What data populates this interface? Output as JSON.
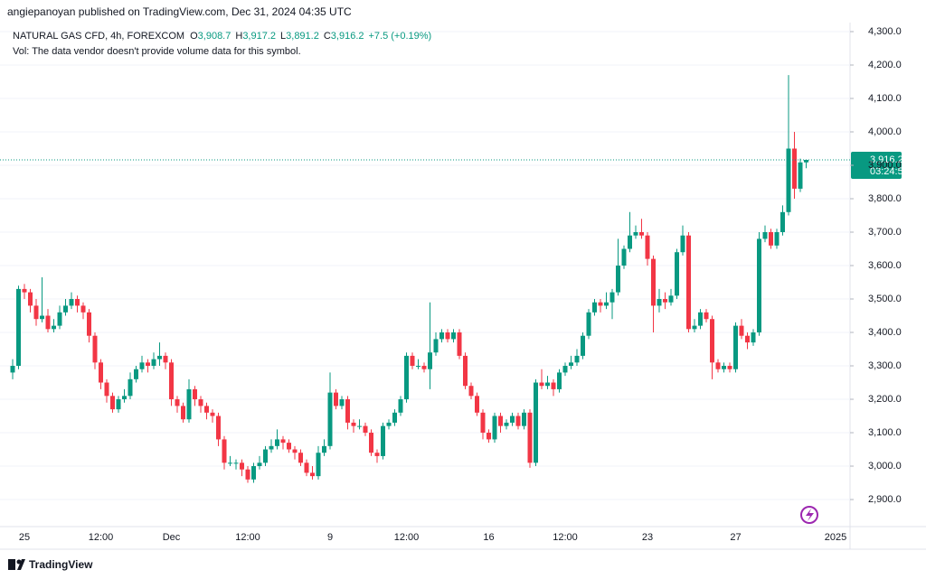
{
  "header": {
    "publisher": "angiepanoyan published on TradingView.com, Dec 31, 2024 04:35 UTC"
  },
  "chart_data": {
    "type": "candlestick",
    "title": "NATURAL GAS CFD, 4h, FOREXCOM",
    "legend": [
      {
        "key": "O",
        "value": 3908.7,
        "label": "3,908.7"
      },
      {
        "key": "H",
        "value": 3917.2,
        "label": "3,917.2"
      },
      {
        "key": "L",
        "value": 3891.2,
        "label": "3,891.2"
      },
      {
        "key": "C",
        "value": 3916.2,
        "label": "3,916.2"
      }
    ],
    "change": {
      "value": 7.5,
      "label": "+7.5 (+0.19%)"
    },
    "note": "Vol: The data vendor doesn't provide volume data for this symbol.",
    "up_color": "#089981",
    "down_color": "#f23645",
    "grid": true,
    "categories": [
      null,
      null,
      "25",
      null,
      null,
      null,
      null,
      null,
      null,
      null,
      null,
      null,
      null,
      null,
      null,
      "12:00",
      null,
      null,
      null,
      null,
      null,
      null,
      null,
      null,
      null,
      null,
      null,
      "Dec",
      null,
      null,
      null,
      null,
      null,
      null,
      null,
      null,
      null,
      null,
      null,
      null,
      "12:00",
      null,
      null,
      null,
      null,
      null,
      null,
      null,
      null,
      null,
      null,
      null,
      null,
      null,
      "9",
      null,
      null,
      null,
      null,
      null,
      null,
      null,
      null,
      null,
      null,
      null,
      null,
      "12:00",
      null,
      null,
      null,
      null,
      null,
      null,
      null,
      null,
      null,
      null,
      null,
      null,
      null,
      "16",
      null,
      null,
      null,
      null,
      null,
      null,
      null,
      null,
      null,
      null,
      null,
      null,
      "12:00",
      null,
      null,
      null,
      null,
      null,
      null,
      null,
      null,
      null,
      null,
      null,
      null,
      null,
      "23",
      null,
      null,
      null,
      null,
      null,
      null,
      null,
      null,
      null,
      null,
      null,
      null,
      null,
      null,
      "27",
      null,
      null,
      null,
      null,
      null,
      null,
      null,
      null,
      null,
      null,
      null,
      null,
      null,
      null,
      null,
      null,
      "2025"
    ],
    "open": [
      3280,
      3300,
      3530,
      3520,
      3480,
      3440,
      3450,
      3410,
      3420,
      3460,
      3480,
      3500,
      3480,
      3460,
      3390,
      3310,
      3250,
      3210,
      3170,
      3200,
      3210,
      3260,
      3290,
      3310,
      3300,
      3320,
      3330,
      3310,
      3200,
      3180,
      3140,
      3230,
      3200,
      3180,
      3160,
      3150,
      3080,
      3010,
      3010,
      3010,
      2990,
      2960,
      3000,
      3010,
      3050,
      3060,
      3080,
      3070,
      3050,
      3040,
      3010,
      2980,
      2970,
      3040,
      3060,
      3220,
      3180,
      3200,
      3130,
      3120,
      3120,
      3100,
      3040,
      3030,
      3120,
      3130,
      3160,
      3200,
      3330,
      3300,
      3300,
      3290,
      3340,
      3380,
      3400,
      3380,
      3400,
      3330,
      3240,
      3210,
      3160,
      3100,
      3080,
      3150,
      3120,
      3130,
      3150,
      3120,
      3160,
      3010,
      3250,
      3240,
      3250,
      3230,
      3280,
      3300,
      3310,
      3330,
      3390,
      3460,
      3490,
      3480,
      3490,
      3520,
      3600,
      3650,
      3690,
      3700,
      3690,
      3620,
      3480,
      3500,
      3490,
      3510,
      3640,
      3690,
      3410,
      3420,
      3460,
      3440,
      3310,
      3290,
      3300,
      3290,
      3420,
      3390,
      3370,
      3400,
      3680,
      3700,
      3660,
      3700,
      3760,
      3950,
      3830,
      3908.7,
      null,
      null,
      null,
      null,
      null
    ],
    "high": [
      3320,
      3540,
      3545,
      3530,
      3500,
      3565,
      3470,
      3440,
      3480,
      3500,
      3520,
      3510,
      3490,
      3470,
      3400,
      3320,
      3260,
      3220,
      3210,
      3230,
      3280,
      3300,
      3330,
      3320,
      3340,
      3370,
      3340,
      3320,
      3210,
      3190,
      3260,
      3240,
      3210,
      3190,
      3170,
      3160,
      3090,
      3030,
      3020,
      3020,
      3000,
      3010,
      3030,
      3060,
      3080,
      3110,
      3090,
      3080,
      3060,
      3050,
      3020,
      3000,
      3060,
      3080,
      3280,
      3230,
      3210,
      3210,
      3140,
      3140,
      3130,
      3110,
      3050,
      3130,
      3140,
      3170,
      3210,
      3340,
      3340,
      3320,
      3310,
      3490,
      3400,
      3410,
      3410,
      3410,
      3410,
      3340,
      3250,
      3220,
      3170,
      3110,
      3160,
      3160,
      3140,
      3160,
      3160,
      3170,
      3170,
      3260,
      3290,
      3270,
      3260,
      3290,
      3310,
      3330,
      3350,
      3400,
      3470,
      3500,
      3500,
      3520,
      3530,
      3680,
      3660,
      3760,
      3720,
      3740,
      3700,
      3630,
      3530,
      3520,
      3530,
      3650,
      3720,
      3700,
      3440,
      3470,
      3470,
      3450,
      3320,
      3310,
      3310,
      3430,
      3440,
      3400,
      3410,
      3700,
      3720,
      3710,
      3710,
      3780,
      4170,
      4000,
      3920,
      3917.2,
      null,
      null,
      null,
      null,
      null
    ],
    "low": [
      3260,
      3290,
      3500,
      3460,
      3420,
      3430,
      3400,
      3400,
      3410,
      3450,
      3470,
      3460,
      3440,
      3370,
      3290,
      3230,
      3190,
      3160,
      3160,
      3190,
      3200,
      3250,
      3280,
      3280,
      3290,
      3300,
      3290,
      3180,
      3160,
      3130,
      3130,
      3180,
      3160,
      3140,
      3130,
      3060,
      2990,
      3000,
      2990,
      2970,
      2950,
      2950,
      2990,
      3000,
      3040,
      3050,
      3050,
      3040,
      3020,
      3000,
      2970,
      2960,
      2960,
      3030,
      3050,
      3170,
      3170,
      3110,
      3100,
      3110,
      3090,
      3030,
      3010,
      3020,
      3110,
      3120,
      3150,
      3190,
      3290,
      3290,
      3280,
      3230,
      3330,
      3370,
      3370,
      3370,
      3320,
      3230,
      3200,
      3150,
      3080,
      3070,
      3070,
      3100,
      3110,
      3120,
      3110,
      3110,
      2995,
      3000,
      3230,
      3230,
      3210,
      3220,
      3270,
      3290,
      3300,
      3320,
      3380,
      3450,
      3460,
      3470,
      3440,
      3510,
      3590,
      3640,
      3680,
      3680,
      3600,
      3400,
      3460,
      3470,
      3480,
      3500,
      3630,
      3400,
      3400,
      3410,
      3430,
      3260,
      3280,
      3280,
      3280,
      3280,
      3380,
      3350,
      3360,
      3390,
      3670,
      3650,
      3650,
      3690,
      3750,
      3800,
      3820,
      3891.2,
      null,
      null,
      null,
      null,
      null
    ],
    "close": [
      3300,
      3530,
      3520,
      3480,
      3440,
      3450,
      3410,
      3420,
      3460,
      3480,
      3500,
      3480,
      3460,
      3390,
      3310,
      3250,
      3210,
      3170,
      3200,
      3210,
      3260,
      3290,
      3310,
      3300,
      3320,
      3330,
      3310,
      3200,
      3180,
      3140,
      3230,
      3200,
      3180,
      3160,
      3150,
      3080,
      3010,
      3010,
      3010,
      2990,
      2960,
      3000,
      3010,
      3050,
      3060,
      3080,
      3070,
      3050,
      3040,
      3010,
      2980,
      2970,
      3040,
      3060,
      3220,
      3180,
      3200,
      3130,
      3120,
      3120,
      3100,
      3040,
      3030,
      3120,
      3130,
      3160,
      3200,
      3330,
      3300,
      3300,
      3290,
      3340,
      3380,
      3400,
      3380,
      3400,
      3330,
      3240,
      3210,
      3160,
      3100,
      3080,
      3150,
      3120,
      3130,
      3150,
      3120,
      3160,
      3010,
      3250,
      3240,
      3250,
      3230,
      3280,
      3300,
      3310,
      3330,
      3390,
      3460,
      3490,
      3480,
      3490,
      3520,
      3600,
      3650,
      3690,
      3700,
      3690,
      3620,
      3480,
      3500,
      3490,
      3510,
      3640,
      3690,
      3410,
      3420,
      3460,
      3440,
      3310,
      3290,
      3300,
      3290,
      3420,
      3390,
      3370,
      3400,
      3680,
      3700,
      3660,
      3700,
      3760,
      3950,
      3830,
      3908.7,
      3916.2,
      null,
      null,
      null,
      null,
      null
    ],
    "ylim": [
      2819,
      4327
    ],
    "yticks": [
      {
        "value": 2900,
        "label": "2,900.0"
      },
      {
        "value": 3000,
        "label": "3,000.0"
      },
      {
        "value": 3100,
        "label": "3,100.0"
      },
      {
        "value": 3200,
        "label": "3,200.0"
      },
      {
        "value": 3300,
        "label": "3,300.0"
      },
      {
        "value": 3400,
        "label": "3,400.0"
      },
      {
        "value": 3500,
        "label": "3,500.0"
      },
      {
        "value": 3600,
        "label": "3,600.0"
      },
      {
        "value": 3700,
        "label": "3,700.0"
      },
      {
        "value": 3800,
        "label": "3,800.0"
      },
      {
        "value": 3900,
        "label": "3,900.0"
      },
      {
        "value": 4000,
        "label": "4,000.0"
      },
      {
        "value": 4100,
        "label": "4,100.0"
      },
      {
        "value": 4200,
        "label": "4,200.0"
      },
      {
        "value": 4300,
        "label": "4,300.0"
      }
    ],
    "last_price": {
      "value": 3916.2,
      "label": "3,916.2"
    },
    "countdown": "03:24:50"
  },
  "footer": {
    "brand": "TradingView"
  }
}
